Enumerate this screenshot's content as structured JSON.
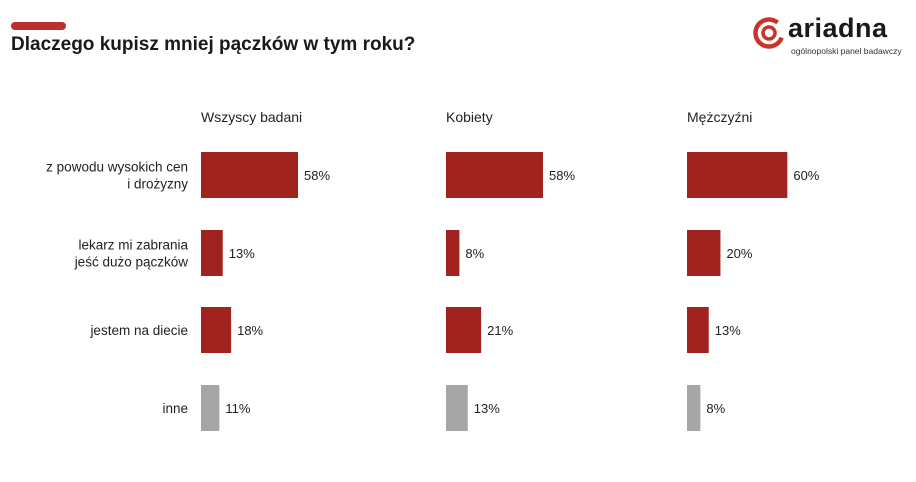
{
  "header": {
    "title": "Dlaczego kupisz mniej pączków w tym roku?"
  },
  "logo": {
    "name": "ariadna",
    "tagline": "ogólnopolski panel badawczy"
  },
  "colors": {
    "accent": "#b9302e",
    "bar_main": "#a0231f",
    "bar_other": "#a6a6a6"
  },
  "chart_data": {
    "type": "bar",
    "orientation": "horizontal",
    "title": "Dlaczego kupisz mniej pączków w tym roku?",
    "categories": [
      [
        "z powodu wysokich cen",
        "i drożyzny"
      ],
      [
        "lekarz mi zabrania",
        "jeść dużo pączków"
      ],
      [
        "jestem na diecie"
      ],
      [
        "inne"
      ]
    ],
    "unit": "%",
    "series": [
      {
        "name": "Wszyscy badani",
        "values": [
          58,
          13,
          18,
          11
        ]
      },
      {
        "name": "Kobiety",
        "values": [
          58,
          8,
          21,
          13
        ]
      },
      {
        "name": "Mężczyźni",
        "values": [
          60,
          20,
          13,
          8
        ]
      }
    ],
    "xlabel": "",
    "ylabel": "",
    "grid": false,
    "legend": "none"
  }
}
